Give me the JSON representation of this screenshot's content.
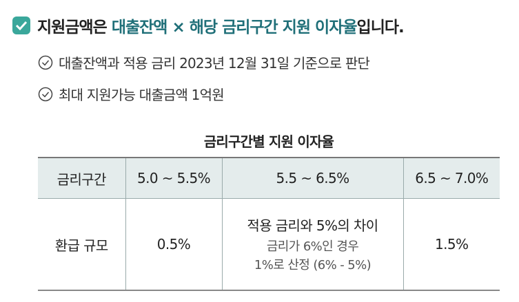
{
  "heading": {
    "before": "지원금액은 ",
    "highlight": "대출잔액 × 해당 금리구간 지원 이자율",
    "after": "입니다."
  },
  "bullets": [
    "대출잔액과 적용 금리 2023년 12월 31일 기준으로 판단",
    "최대 지원가능 대출금액 1억원"
  ],
  "table": {
    "title": "금리구간별 지원 이자율",
    "header": [
      "금리구간",
      "5.0 ~ 5.5%",
      "5.5 ~ 6.5%",
      "6.5 ~ 7.0%"
    ],
    "rows": [
      [
        "환급 규모",
        "0.5%",
        [
          "적용 금리와 5%의 차이",
          "금리가 6%인 경우",
          "1%로 산정 (6% - 5%)"
        ],
        "1.5%"
      ]
    ]
  }
}
